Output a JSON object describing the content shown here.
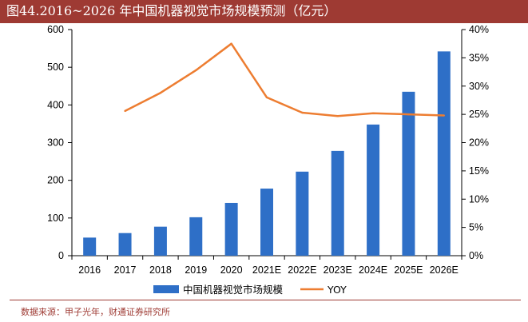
{
  "title": "图44.2016~2026 年中国机器视觉市场规模预测（亿元）",
  "source": "数据来源：甲子光年，财通证券研究所",
  "colors": {
    "bar": "#2e6fc7",
    "line": "#ed7d31",
    "accent": "#9e3a33"
  },
  "chart_data": {
    "type": "bar",
    "title": "2016~2026 年中国机器视觉市场规模预测（亿元）",
    "categories": [
      "2016",
      "2017",
      "2018",
      "2019",
      "2020",
      "2021E",
      "2022E",
      "2023E",
      "2024E",
      "2025E",
      "2026E"
    ],
    "series": [
      {
        "name": "中国机器视觉市场规模",
        "type": "bar",
        "axis": "left",
        "values": [
          48,
          60,
          77,
          102,
          140,
          178,
          223,
          278,
          348,
          435,
          542
        ]
      },
      {
        "name": "YOY",
        "type": "line",
        "axis": "right",
        "values": [
          null,
          25.6,
          28.8,
          32.8,
          37.5,
          28.0,
          25.3,
          24.7,
          25.2,
          25.0,
          24.8
        ]
      }
    ],
    "y_left": {
      "min": 0,
      "max": 600,
      "ticks": [
        "0",
        "100",
        "200",
        "300",
        "400",
        "500",
        "600"
      ]
    },
    "y_right": {
      "min": 0,
      "max": 40,
      "ticks": [
        "0%",
        "5%",
        "10%",
        "15%",
        "20%",
        "25%",
        "30%",
        "35%",
        "40%"
      ]
    },
    "legend": [
      "中国机器视觉市场规模",
      "YOY"
    ],
    "legend_position": "bottom"
  }
}
